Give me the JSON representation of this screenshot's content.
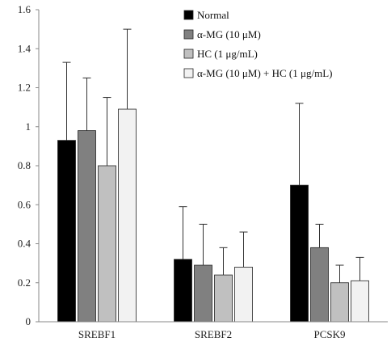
{
  "chart_data": {
    "type": "bar",
    "title": "",
    "xlabel": "",
    "ylabel": "",
    "categories": [
      "SREBF1",
      "SREBF2",
      "PCSK9"
    ],
    "ylim": [
      0,
      1.6
    ],
    "yticks": [
      "0",
      "0.2",
      "0.4",
      "0.6",
      "0.8",
      "1",
      "1.2",
      "1.4",
      "1.6"
    ],
    "grid": false,
    "legend_position": "top-right",
    "error_bars": "upper",
    "series": [
      {
        "name": "Normal",
        "color": "#000000",
        "values": [
          0.93,
          0.32,
          0.7
        ],
        "errors": [
          0.4,
          0.27,
          0.42
        ]
      },
      {
        "name": "α-MG (10 μM)",
        "color": "#808080",
        "values": [
          0.98,
          0.29,
          0.38
        ],
        "errors": [
          0.27,
          0.21,
          0.12
        ]
      },
      {
        "name": "HC (1 μg/mL)",
        "color": "#c0c0c0",
        "values": [
          0.8,
          0.24,
          0.2
        ],
        "errors": [
          0.35,
          0.14,
          0.09
        ]
      },
      {
        "name": "α-MG (10 μM) + HC (1 μg/mL)",
        "color": "#f2f2f2",
        "values": [
          1.09,
          0.28,
          0.21
        ],
        "errors": [
          0.41,
          0.18,
          0.12
        ]
      }
    ]
  }
}
